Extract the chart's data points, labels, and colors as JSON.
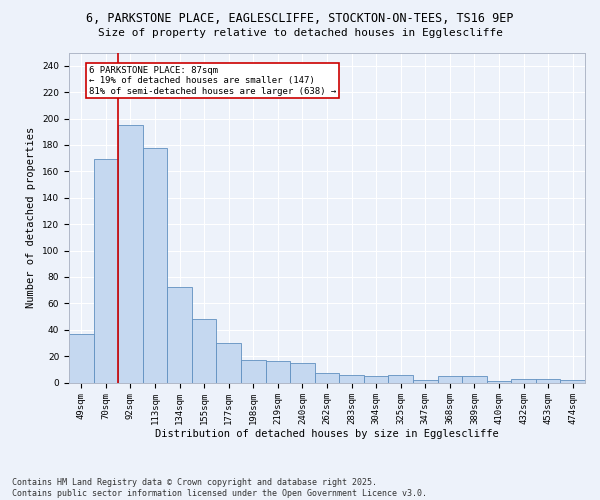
{
  "title_line1": "6, PARKSTONE PLACE, EAGLESCLIFFE, STOCKTON-ON-TEES, TS16 9EP",
  "title_line2": "Size of property relative to detached houses in Egglescliffe",
  "xlabel": "Distribution of detached houses by size in Egglescliffe",
  "ylabel": "Number of detached properties",
  "categories": [
    "49sqm",
    "70sqm",
    "92sqm",
    "113sqm",
    "134sqm",
    "155sqm",
    "177sqm",
    "198sqm",
    "219sqm",
    "240sqm",
    "262sqm",
    "283sqm",
    "304sqm",
    "325sqm",
    "347sqm",
    "368sqm",
    "389sqm",
    "410sqm",
    "432sqm",
    "453sqm",
    "474sqm"
  ],
  "bar_heights": [
    37,
    169,
    195,
    178,
    72,
    48,
    30,
    17,
    16,
    15,
    7,
    6,
    5,
    6,
    2,
    5,
    5,
    1,
    3,
    3,
    2
  ],
  "bar_color": "#c5d8f0",
  "bar_edge_color": "#6090c0",
  "red_line_x": 1.5,
  "annotation_text": "6 PARKSTONE PLACE: 87sqm\n← 19% of detached houses are smaller (147)\n81% of semi-detached houses are larger (638) →",
  "annotation_box_color": "#ffffff",
  "annotation_box_edge_color": "#cc0000",
  "red_line_color": "#cc0000",
  "ylim": [
    0,
    250
  ],
  "yticks": [
    0,
    20,
    40,
    60,
    80,
    100,
    120,
    140,
    160,
    180,
    200,
    220,
    240
  ],
  "background_color": "#edf2fa",
  "grid_color": "#ffffff",
  "footer_line1": "Contains HM Land Registry data © Crown copyright and database right 2025.",
  "footer_line2": "Contains public sector information licensed under the Open Government Licence v3.0.",
  "title1_fontsize": 8.5,
  "title2_fontsize": 8.0,
  "axis_label_fontsize": 7.5,
  "tick_fontsize": 6.5,
  "annot_fontsize": 6.5,
  "footer_fontsize": 6.0
}
